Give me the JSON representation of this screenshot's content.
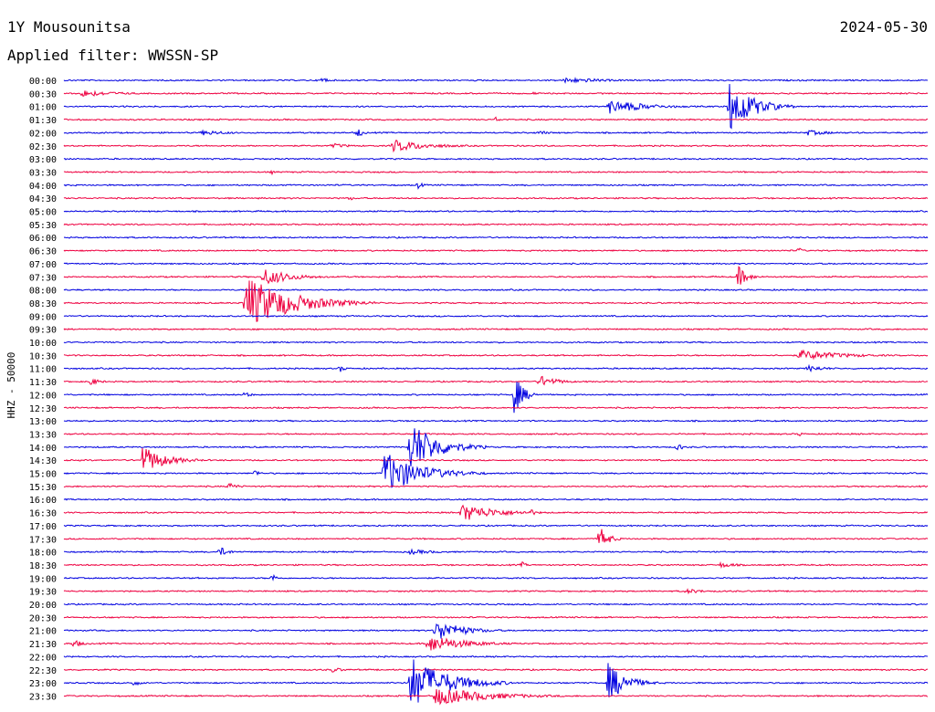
{
  "header": {
    "station": "1Y Mousounitsa",
    "filter_label": "Applied filter: WWSSN-SP",
    "date": "2024-05-30"
  },
  "colors": {
    "even": "#0000e0",
    "odd": "#ee0040"
  },
  "chart_data": {
    "type": "line",
    "title": "1Y Mousounitsa",
    "ylabel": "HHZ - 50000",
    "row_labels": [
      "00:00",
      "00:30",
      "01:00",
      "01:30",
      "02:00",
      "02:30",
      "03:00",
      "03:30",
      "04:00",
      "04:30",
      "05:00",
      "05:30",
      "06:00",
      "06:30",
      "07:00",
      "07:30",
      "08:00",
      "08:30",
      "09:00",
      "09:30",
      "10:00",
      "10:30",
      "11:00",
      "11:30",
      "12:00",
      "12:30",
      "13:00",
      "13:30",
      "14:00",
      "14:30",
      "15:00",
      "15:30",
      "16:00",
      "16:30",
      "17:00",
      "17:30",
      "18:00",
      "18:30",
      "19:00",
      "19:30",
      "20:00",
      "20:30",
      "21:00",
      "21:30",
      "22:00",
      "22:30",
      "23:00",
      "23:30"
    ],
    "events": [
      {
        "row": 0,
        "t": 0.3,
        "amp": 8,
        "dur": 0.003
      },
      {
        "row": 0,
        "t": 0.58,
        "amp": 3,
        "dur": 0.05
      },
      {
        "row": 1,
        "t": 0.02,
        "amp": 4,
        "dur": 0.04
      },
      {
        "row": 1,
        "t": 0.54,
        "amp": 2,
        "dur": 0.01
      },
      {
        "row": 2,
        "t": 0.63,
        "amp": 8,
        "dur": 0.04
      },
      {
        "row": 2,
        "t": 0.77,
        "amp": 30,
        "dur": 0.025
      },
      {
        "row": 3,
        "t": 0.5,
        "amp": 4,
        "dur": 0.004
      },
      {
        "row": 4,
        "t": 0.16,
        "amp": 3,
        "dur": 0.03
      },
      {
        "row": 4,
        "t": 0.34,
        "amp": 6,
        "dur": 0.006
      },
      {
        "row": 4,
        "t": 0.55,
        "amp": 3,
        "dur": 0.01
      },
      {
        "row": 4,
        "t": 0.86,
        "amp": 3,
        "dur": 0.03
      },
      {
        "row": 5,
        "t": 0.31,
        "amp": 3,
        "dur": 0.02
      },
      {
        "row": 5,
        "t": 0.38,
        "amp": 7,
        "dur": 0.04
      },
      {
        "row": 7,
        "t": 0.24,
        "amp": 3,
        "dur": 0.004
      },
      {
        "row": 8,
        "t": 0.41,
        "amp": 4,
        "dur": 0.006
      },
      {
        "row": 9,
        "t": 0.33,
        "amp": 4,
        "dur": 0.004
      },
      {
        "row": 13,
        "t": 0.85,
        "amp": 5,
        "dur": 0.004
      },
      {
        "row": 15,
        "t": 0.23,
        "amp": 10,
        "dur": 0.03
      },
      {
        "row": 15,
        "t": 0.78,
        "amp": 13,
        "dur": 0.01
      },
      {
        "row": 17,
        "t": 0.21,
        "amp": 30,
        "dur": 0.05
      },
      {
        "row": 17,
        "t": 0.29,
        "amp": 7,
        "dur": 0.015
      },
      {
        "row": 21,
        "t": 0.85,
        "amp": 6,
        "dur": 0.05
      },
      {
        "row": 22,
        "t": 0.32,
        "amp": 4,
        "dur": 0.006
      },
      {
        "row": 22,
        "t": 0.86,
        "amp": 4,
        "dur": 0.02
      },
      {
        "row": 23,
        "t": 0.03,
        "amp": 5,
        "dur": 0.01
      },
      {
        "row": 23,
        "t": 0.55,
        "amp": 7,
        "dur": 0.02
      },
      {
        "row": 24,
        "t": 0.21,
        "amp": 5,
        "dur": 0.005
      },
      {
        "row": 24,
        "t": 0.52,
        "amp": 26,
        "dur": 0.01
      },
      {
        "row": 27,
        "t": 0.85,
        "amp": 4,
        "dur": 0.004
      },
      {
        "row": 28,
        "t": 0.4,
        "amp": 30,
        "dur": 0.03
      },
      {
        "row": 28,
        "t": 0.44,
        "amp": 5,
        "dur": 0.008
      },
      {
        "row": 28,
        "t": 0.71,
        "amp": 6,
        "dur": 0.005
      },
      {
        "row": 29,
        "t": 0.09,
        "amp": 16,
        "dur": 0.025
      },
      {
        "row": 30,
        "t": 0.37,
        "amp": 24,
        "dur": 0.04
      },
      {
        "row": 30,
        "t": 0.22,
        "amp": 6,
        "dur": 0.005
      },
      {
        "row": 31,
        "t": 0.19,
        "amp": 5,
        "dur": 0.01
      },
      {
        "row": 33,
        "t": 0.46,
        "amp": 10,
        "dur": 0.04
      },
      {
        "row": 33,
        "t": 0.54,
        "amp": 5,
        "dur": 0.005
      },
      {
        "row": 35,
        "t": 0.62,
        "amp": 14,
        "dur": 0.01
      },
      {
        "row": 36,
        "t": 0.18,
        "amp": 6,
        "dur": 0.01
      },
      {
        "row": 36,
        "t": 0.4,
        "amp": 3,
        "dur": 0.03
      },
      {
        "row": 37,
        "t": 0.53,
        "amp": 4,
        "dur": 0.005
      },
      {
        "row": 37,
        "t": 0.76,
        "amp": 3,
        "dur": 0.02
      },
      {
        "row": 38,
        "t": 0.24,
        "amp": 7,
        "dur": 0.005
      },
      {
        "row": 39,
        "t": 0.72,
        "amp": 3,
        "dur": 0.02
      },
      {
        "row": 42,
        "t": 0.43,
        "amp": 12,
        "dur": 0.03
      },
      {
        "row": 43,
        "t": 0.01,
        "amp": 5,
        "dur": 0.01
      },
      {
        "row": 43,
        "t": 0.42,
        "amp": 10,
        "dur": 0.04
      },
      {
        "row": 44,
        "t": 0.26,
        "amp": 4,
        "dur": 0.003
      },
      {
        "row": 45,
        "t": 0.31,
        "amp": 3,
        "dur": 0.015
      },
      {
        "row": 46,
        "t": 0.4,
        "amp": 30,
        "dur": 0.04
      },
      {
        "row": 46,
        "t": 0.63,
        "amp": 22,
        "dur": 0.02
      },
      {
        "row": 46,
        "t": 0.08,
        "amp": 4,
        "dur": 0.008
      },
      {
        "row": 47,
        "t": 0.43,
        "amp": 10,
        "dur": 0.06
      }
    ]
  }
}
